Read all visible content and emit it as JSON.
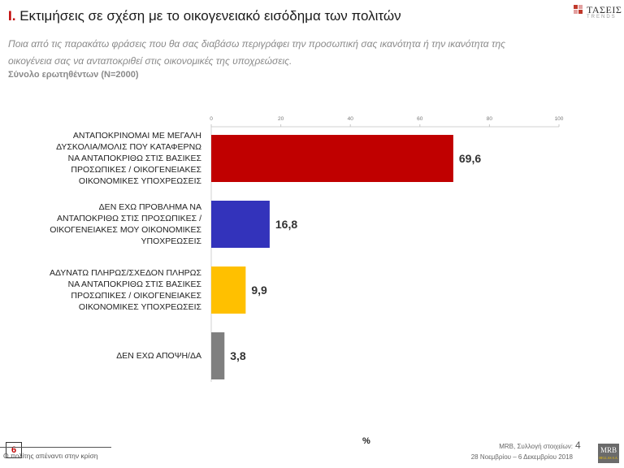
{
  "header": {
    "title_num": "I.",
    "title_text": "Εκτιμήσεις σε σχέση με το οικογενειακό εισόδημα των πολιτών",
    "subtitle": "Ποια από τις παρακάτω φράσεις που θα σας διαβάσω περιγράφει την προσωπική σας ικανότητα ή την ικανότητα της οικογένεια σας να ανταποκριθεί στις οικονομικές της υποχρεώσεις.",
    "base": "Σύνολο ερωτηθέντων (N=2000)"
  },
  "logo": {
    "brand": "ΤΑΣΕΙΣ",
    "tagline": "TRENDS"
  },
  "chart_data": {
    "type": "bar",
    "orientation": "horizontal",
    "categories": [
      "ΑΝΤΑΠΟΚΡΙΝΟΜΑΙ ΜΕ ΜΕΓΑΛΗ ΔΥΣΚΟΛΙΑ/ΜΟΛΙΣ ΠΟΥ ΚΑΤΑΦΕΡΝΩ ΝΑ ΑΝΤΑΠΟΚΡΙΘΩ ΣΤΙΣ ΒΑΣΙΚΕΣ ΠΡΟΣΩΠΙΚΕΣ / ΟΙΚΟΓΕΝΕΙΑΚΕΣ ΟΙΚΟΝΟΜΙΚΕΣ ΥΠΟΧΡΕΩΣΕΙΣ",
      "ΔΕΝ ΕΧΩ ΠΡΟΒΛΗΜΑ ΝΑ ΑΝΤΑΠΟΚΡΙΘΩ ΣΤΙΣ ΠΡΟΣΩΠΙΚΕΣ / ΟΙΚΟΓΕΝΕΙΑΚΕΣ ΜΟΥ ΟΙΚΟΝΟΜΙΚΕΣ ΥΠΟΧΡΕΩΣΕΙΣ",
      "ΑΔΥΝΑΤΩ ΠΛΗΡΩΣ/ΣΧΕΔΟΝ ΠΛΗΡΩΣ ΝΑ ΑΝΤΑΠΟΚΡΙΘΩ ΣΤΙΣ ΒΑΣΙΚΕΣ ΠΡΟΣΩΠΙΚΕΣ / ΟΙΚΟΓΕΝΕΙΑΚΕΣ ΟΙΚΟΝΟΜΙΚΕΣ ΥΠΟΧΡΕΩΣΕΙΣ",
      "ΔΕΝ ΕΧΩ ΑΠΟΨΗ/ΔΑ"
    ],
    "category_lines": [
      [
        "ΑΝΤΑΠΟΚΡΙΝΟΜΑΙ ΜΕ ΜΕΓΑΛΗ",
        "ΔΥΣΚΟΛΙΑ/ΜΟΛΙΣ ΠΟΥ ΚΑΤΑΦΕΡΝΩ",
        "ΝΑ ΑΝΤΑΠΟΚΡΙΘΩ ΣΤΙΣ ΒΑΣΙΚΕΣ",
        "ΠΡΟΣΩΠΙΚΕΣ / ΟΙΚΟΓΕΝΕΙΑΚΕΣ",
        "ΟΙΚΟΝΟΜΙΚΕΣ ΥΠΟΧΡΕΩΣΕΙΣ"
      ],
      [
        "ΔΕΝ ΕΧΩ ΠΡΟΒΛΗΜΑ ΝΑ",
        "ΑΝΤΑΠΟΚΡΙΘΩ ΣΤΙΣ ΠΡΟΣΩΠΙΚΕΣ /",
        "ΟΙΚΟΓΕΝΕΙΑΚΕΣ ΜΟΥ ΟΙΚΟΝΟΜΙΚΕΣ",
        "ΥΠΟΧΡΕΩΣΕΙΣ"
      ],
      [
        "ΑΔΥΝΑΤΩ ΠΛΗΡΩΣ/ΣΧΕΔΟΝ ΠΛΗΡΩΣ",
        "ΝΑ ΑΝΤΑΠΟΚΡΙΘΩ ΣΤΙΣ ΒΑΣΙΚΕΣ",
        "ΠΡΟΣΩΠΙΚΕΣ / ΟΙΚΟΓΕΝΕΙΑΚΕΣ",
        "ΟΙΚΟΝΟΜΙΚΕΣ ΥΠΟΧΡΕΩΣΕΙΣ"
      ],
      [
        "ΔΕΝ ΕΧΩ ΑΠΟΨΗ/ΔΑ"
      ]
    ],
    "values": [
      69.6,
      16.8,
      9.9,
      3.8
    ],
    "value_labels": [
      "69,6",
      "16,8",
      "9,9",
      "3,8"
    ],
    "colors": [
      "#c00000",
      "#3333bb",
      "#ffc000",
      "#7f7f7f"
    ],
    "xlim": [
      0,
      100
    ],
    "xticks": [
      0,
      20,
      40,
      60,
      80,
      100
    ],
    "xlabel": "%",
    "axis_position": "top",
    "grid": false,
    "legend": "none"
  },
  "footer": {
    "page_box": "6",
    "left": "Ο πολίτης απέναντι στην κρίση",
    "right_line1": "MRB, Συλλογή στοιχείων:",
    "right_line2": "28 Νοεμβρίου – 6 Δεκεμβρίου 2018",
    "page_number": "4",
    "mrb_logo": "MRB",
    "mrb_tag": "HELLAS S.A."
  }
}
